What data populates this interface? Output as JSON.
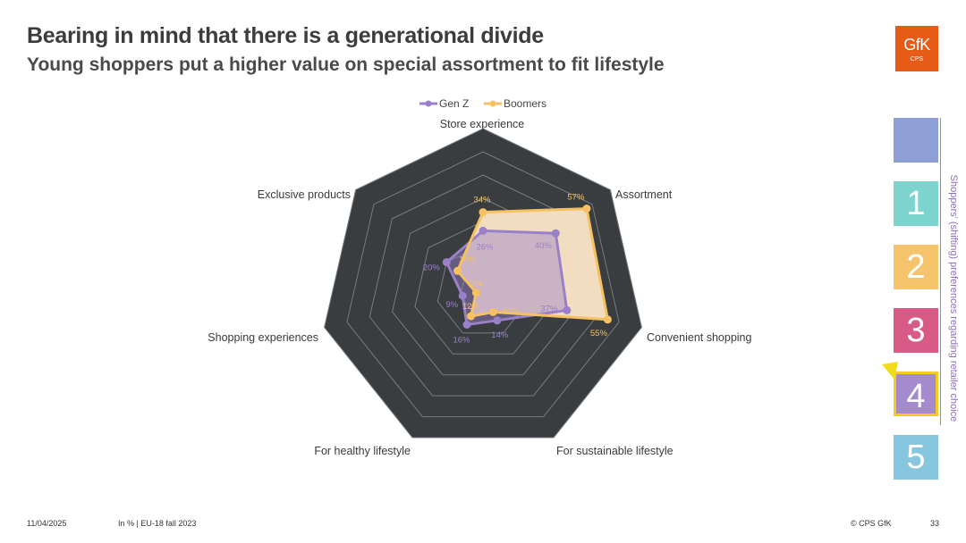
{
  "header": {
    "title": "Bearing in mind that there is a generational divide",
    "subtitle": "Young shoppers put a higher value on special assortment to fit lifestyle"
  },
  "logo": {
    "brand": "GfK",
    "sub": "CPS"
  },
  "footer": {
    "date": "11/04/2025",
    "source": "In % | EU-18 fall 2023",
    "copyright": "© CPS GfK",
    "page_number": "33"
  },
  "side_nav": {
    "vertical_label": "Shoppers' (shifting) preferences regarding retailer choice",
    "items": [
      {
        "label": "",
        "color": "#8d9fd4"
      },
      {
        "label": "1",
        "color": "#7dd3cd"
      },
      {
        "label": "2",
        "color": "#f7c46e"
      },
      {
        "label": "3",
        "color": "#d85b87"
      },
      {
        "label": "4",
        "color": "#a58bcd",
        "active": true,
        "border": "#f5cb1f"
      },
      {
        "label": "5",
        "color": "#86c7df"
      }
    ],
    "pointer_color": "#f2dc1a"
  },
  "chart_data": {
    "type": "radar",
    "categories": [
      "Store experience",
      "Assortment",
      "Convenient shopping",
      "For sustainable lifestyle",
      "For healthy lifestyle",
      "Shopping experiences",
      "Exclusive products"
    ],
    "range": [
      0,
      70
    ],
    "ring_step": 10,
    "series": [
      {
        "name": "Gen Z",
        "values": [
          26,
          40,
          37,
          14,
          16,
          9,
          20
        ],
        "color": "#9a80c8"
      },
      {
        "name": "Boomers",
        "values": [
          34,
          57,
          55,
          10,
          12,
          3,
          14
        ],
        "color": "#f5c163",
        "fill": "#fde6c8"
      }
    ],
    "value_labels": {
      "Gen Z": [
        "26%",
        "40%",
        "37%",
        "14%",
        "16%",
        "9%",
        "20%"
      ],
      "Boomers": [
        "34%",
        "57%",
        "55%",
        "10%",
        "12%",
        "3%",
        "14%"
      ]
    },
    "legend_position": "top",
    "background_color": "#3a3d40",
    "grid_color": "#777b80"
  }
}
